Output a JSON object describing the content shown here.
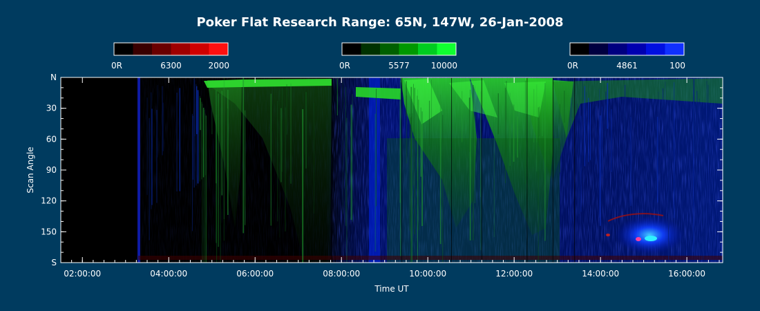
{
  "chart_data": {
    "type": "heatmap",
    "title": "Poker Flat Research Range: 65N, 147W, 26-Jan-2008",
    "xlabel": "Time UT",
    "ylabel": "Scan Angle",
    "x_range_hours": [
      1.5,
      16.83
    ],
    "x_ticks": [
      {
        "hour": 2,
        "label": "02:00:00"
      },
      {
        "hour": 4,
        "label": "04:00:00"
      },
      {
        "hour": 6,
        "label": "06:00:00"
      },
      {
        "hour": 8,
        "label": "08:00:00"
      },
      {
        "hour": 10,
        "label": "10:00:00"
      },
      {
        "hour": 12,
        "label": "12:00:00"
      },
      {
        "hour": 14,
        "label": "14:00:00"
      },
      {
        "hour": 16,
        "label": "16:00:00"
      }
    ],
    "y_range_deg": [
      0,
      180
    ],
    "y_ticks": [
      {
        "deg": 0,
        "label": "N"
      },
      {
        "deg": 30,
        "label": "30"
      },
      {
        "deg": 60,
        "label": "60"
      },
      {
        "deg": 90,
        "label": "90"
      },
      {
        "deg": 120,
        "label": "120"
      },
      {
        "deg": 150,
        "label": "150"
      },
      {
        "deg": 180,
        "label": "S"
      }
    ],
    "colorbars": [
      {
        "wavelength": "6300",
        "min_label": "0R",
        "max_label": "2000",
        "color": "#ff0000",
        "steps": [
          "#000000",
          "#3a0000",
          "#6a0000",
          "#a00000",
          "#d00000",
          "#ff1010"
        ]
      },
      {
        "wavelength": "5577",
        "min_label": "0R",
        "max_label": "10000",
        "color": "#00ff00",
        "steps": [
          "#000000",
          "#003200",
          "#006000",
          "#009800",
          "#00cc20",
          "#10ff30"
        ]
      },
      {
        "wavelength": "4861",
        "min_label": "0R",
        "max_label": "100",
        "color": "#0000ff",
        "steps": [
          "#000000",
          "#000040",
          "#000080",
          "#0000b0",
          "#0010e0",
          "#1030ff"
        ]
      }
    ],
    "background_color": "#003b5f"
  }
}
